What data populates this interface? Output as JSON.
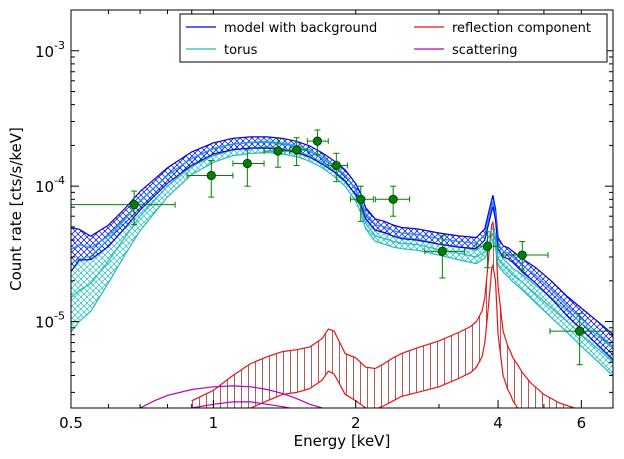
{
  "chart_data": {
    "type": "line",
    "xlabel": "Energy [keV]",
    "ylabel": "Count rate [cts/s/keV]",
    "xscale": "log",
    "yscale": "log",
    "xlim": [
      0.5,
      7.0
    ],
    "ylim": [
      2.3e-06,
      0.002
    ],
    "x_ticks": [
      {
        "value": 0.5,
        "label": "0.5"
      },
      {
        "value": 1,
        "label": "1"
      },
      {
        "value": 2,
        "label": "2"
      },
      {
        "value": 4,
        "label": "4"
      },
      {
        "value": 6,
        "label": "6"
      }
    ],
    "y_ticks": [
      {
        "value": 1e-05,
        "base": "10",
        "exp": "-5"
      },
      {
        "value": 0.0001,
        "base": "10",
        "exp": "-4"
      },
      {
        "value": 0.001,
        "base": "10",
        "exp": "-3"
      }
    ],
    "legend": {
      "position": "top-right",
      "columns": 2
    },
    "colors": {
      "model": "#0000dd",
      "model_inner": "#1e90ff",
      "torus": "#22bbbb",
      "reflection": "#ee1111",
      "reflection_hatch": "#993333",
      "scattering": "#bb00bb",
      "data": "#008000"
    },
    "series": [
      {
        "name": "model with background",
        "key": "model",
        "band": true,
        "x": [
          0.5,
          0.52,
          0.55,
          0.6,
          0.65,
          0.7,
          0.8,
          0.9,
          1.0,
          1.1,
          1.2,
          1.3,
          1.4,
          1.5,
          1.6,
          1.7,
          1.8,
          1.9,
          2.0,
          2.05,
          2.1,
          2.2,
          2.3,
          2.4,
          2.5,
          2.7,
          3.0,
          3.3,
          3.6,
          3.75,
          3.85,
          3.9,
          3.95,
          4.0,
          4.1,
          4.2,
          4.3,
          4.5,
          4.8,
          5.2,
          5.6,
          6.0,
          6.5,
          7.0
        ],
        "values": [
          3.4e-05,
          3.7e-05,
          3.5e-05,
          4.3e-05,
          5.8e-05,
          7.8e-05,
          0.00012,
          0.00016,
          0.00019,
          0.000205,
          0.00021,
          0.00021,
          0.000205,
          0.000195,
          0.00018,
          0.00016,
          0.00014,
          0.00012,
          9.5e-05,
          8e-05,
          6.3e-05,
          5.2e-05,
          5e-05,
          4.7e-05,
          4.5e-05,
          4.4e-05,
          4.1e-05,
          3.9e-05,
          3.8e-05,
          4.4e-05,
          6.5e-05,
          7.8e-05,
          6.2e-05,
          3.8e-05,
          3.3e-05,
          3.2e-05,
          3e-05,
          2.6e-05,
          2.2e-05,
          1.7e-05,
          1.3e-05,
          1.05e-05,
          8.2e-06,
          6.5e-06
        ],
        "band_spread": [
          1.45,
          1.3,
          1.22,
          1.2,
          1.18,
          1.17,
          1.14,
          1.12,
          1.1,
          1.1,
          1.1,
          1.1,
          1.1,
          1.1,
          1.1,
          1.1,
          1.1,
          1.1,
          1.1,
          1.1,
          1.1,
          1.1,
          1.1,
          1.1,
          1.1,
          1.1,
          1.1,
          1.1,
          1.1,
          1.1,
          1.1,
          1.1,
          1.1,
          1.1,
          1.1,
          1.1,
          1.1,
          1.12,
          1.14,
          1.16,
          1.18,
          1.2,
          1.22,
          1.24
        ]
      },
      {
        "name": "torus",
        "key": "torus",
        "band": true,
        "x": [
          0.5,
          0.52,
          0.55,
          0.6,
          0.65,
          0.7,
          0.8,
          0.9,
          1.0,
          1.1,
          1.2,
          1.3,
          1.4,
          1.5,
          1.6,
          1.7,
          1.8,
          1.9,
          2.0,
          2.05,
          2.1,
          2.2,
          2.3,
          2.4,
          2.5,
          2.7,
          3.0,
          3.3,
          3.6,
          3.75,
          3.85,
          3.9,
          3.95,
          4.0,
          4.1,
          4.2,
          4.3,
          4.5,
          4.8,
          5.2,
          5.6,
          6.0,
          6.5,
          7.0
        ],
        "values": [
          1.5e-05,
          1.7e-05,
          1.9e-05,
          2.8e-05,
          4.2e-05,
          6e-05,
          0.0001,
          0.00014,
          0.000168,
          0.000185,
          0.000192,
          0.000195,
          0.00019,
          0.000182,
          0.000168,
          0.00015,
          0.00013,
          0.00011,
          8.5e-05,
          7e-05,
          5.3e-05,
          4.3e-05,
          4.1e-05,
          3.9e-05,
          3.8e-05,
          3.7e-05,
          3.4e-05,
          3.2e-05,
          3e-05,
          3.3e-05,
          4e-05,
          4.4e-05,
          3.9e-05,
          2.9e-05,
          2.6e-05,
          2.4e-05,
          2.2e-05,
          1.95e-05,
          1.6e-05,
          1.25e-05,
          1e-05,
          8e-06,
          6.3e-06,
          5e-06
        ],
        "band_spread": [
          1.8,
          1.7,
          1.6,
          1.45,
          1.35,
          1.28,
          1.2,
          1.15,
          1.12,
          1.1,
          1.1,
          1.1,
          1.1,
          1.1,
          1.1,
          1.1,
          1.1,
          1.1,
          1.1,
          1.1,
          1.1,
          1.1,
          1.1,
          1.1,
          1.1,
          1.1,
          1.1,
          1.12,
          1.12,
          1.12,
          1.12,
          1.12,
          1.12,
          1.12,
          1.12,
          1.12,
          1.12,
          1.14,
          1.16,
          1.18,
          1.2,
          1.22,
          1.24,
          1.26
        ]
      },
      {
        "name": "reflection component",
        "key": "reflection",
        "band": true,
        "x": [
          0.9,
          1.0,
          1.1,
          1.2,
          1.3,
          1.4,
          1.5,
          1.6,
          1.7,
          1.75,
          1.8,
          1.9,
          2.0,
          2.1,
          2.2,
          2.3,
          2.4,
          2.5,
          2.7,
          3.0,
          3.3,
          3.5,
          3.6,
          3.7,
          3.75,
          3.8,
          3.85,
          3.88,
          3.9,
          3.95,
          4.0,
          4.1,
          4.2,
          4.25,
          4.3,
          4.4,
          4.5,
          4.7,
          5.0,
          5.4,
          5.8,
          6.2
        ],
        "values": [
          2.6e-06,
          3.1e-06,
          4e-06,
          4.9e-06,
          5.5e-06,
          6e-06,
          6.2e-06,
          6.5e-06,
          7.5e-06,
          8.8e-06,
          8.5e-06,
          5.8e-06,
          5.4e-06,
          4.6e-06,
          4.5e-06,
          4.9e-06,
          5.4e-06,
          5.8e-06,
          6.4e-06,
          7.2e-06,
          8.3e-06,
          9.2e-06,
          1e-05,
          1.2e-05,
          1.5e-05,
          2.4e-05,
          4e-05,
          5.2e-05,
          5.4e-05,
          4.2e-05,
          1.8e-05,
          8.5e-06,
          6.5e-06,
          6e-06,
          5.4e-06,
          4.8e-06,
          4.2e-06,
          3.5e-06,
          2.9e-06,
          2.5e-06,
          2.3e-06,
          2.25e-06
        ],
        "band_lower": [
          2e-06,
          2e-06,
          2.1e-06,
          2.3e-06,
          2.6e-06,
          2.9e-06,
          3e-06,
          3.2e-06,
          3.7e-06,
          4.3e-06,
          4.1e-06,
          2.9e-06,
          2.6e-06,
          2.3e-06,
          2.25e-06,
          2.4e-06,
          2.6e-06,
          2.8e-06,
          3e-06,
          3.3e-06,
          3.8e-06,
          4.2e-06,
          4.6e-06,
          5.5e-06,
          7e-06,
          1.1e-05,
          1.8e-05,
          2.5e-05,
          2.6e-05,
          2e-05,
          8e-06,
          4e-06,
          3.1e-06,
          2.9e-06,
          2.6e-06,
          2.3e-06,
          2.1e-06,
          2e-06,
          2e-06,
          2e-06,
          2e-06,
          2e-06
        ]
      },
      {
        "name": "scattering",
        "key": "scattering",
        "band": false,
        "curves": [
          {
            "x": [
              0.7,
              0.75,
              0.8,
              0.9,
              1.0,
              1.1,
              1.2,
              1.3,
              1.4,
              1.5,
              1.6,
              1.7
            ],
            "values": [
              2.3e-06,
              2.6e-06,
              2.85e-06,
              3.15e-06,
              3.3e-06,
              3.35e-06,
              3.3e-06,
              3.15e-06,
              2.95e-06,
              2.7e-06,
              2.45e-06,
              2.3e-06
            ]
          },
          {
            "x": [
              0.9,
              1.0,
              1.1,
              1.2,
              1.3,
              1.4,
              1.45
            ],
            "values": [
              2.3e-06,
              2.45e-06,
              2.55e-06,
              2.55e-06,
              2.45e-06,
              2.35e-06,
              2.3e-06
            ]
          }
        ]
      }
    ],
    "data_points": [
      {
        "x": 0.68,
        "xerr": [
          0.5,
          0.83
        ],
        "y": 7.3e-05,
        "yerr": [
          5.2e-05,
          9.2e-05
        ]
      },
      {
        "x": 0.99,
        "xerr": [
          0.88,
          1.1
        ],
        "y": 0.00012,
        "yerr": [
          8.3e-05,
          0.000155
        ]
      },
      {
        "x": 1.18,
        "xerr": [
          1.1,
          1.28
        ],
        "y": 0.000147,
        "yerr": [
          0.0001,
          0.000185
        ]
      },
      {
        "x": 1.37,
        "xerr": [
          1.28,
          1.45
        ],
        "y": 0.000182,
        "yerr": [
          0.000138,
          0.000225
        ]
      },
      {
        "x": 1.5,
        "xerr": [
          1.45,
          1.58
        ],
        "y": 0.000185,
        "yerr": [
          0.000142,
          0.000228
        ]
      },
      {
        "x": 1.66,
        "xerr": [
          1.58,
          1.75
        ],
        "y": 0.000215,
        "yerr": [
          0.00017,
          0.00026
        ]
      },
      {
        "x": 1.82,
        "xerr": [
          1.75,
          1.92
        ],
        "y": 0.000142,
        "yerr": [
          0.000108,
          0.000175
        ]
      },
      {
        "x": 2.05,
        "xerr": [
          1.95,
          2.18
        ],
        "y": 8e-05,
        "yerr": [
          5.5e-05,
          0.0001
        ]
      },
      {
        "x": 2.4,
        "xerr": [
          2.2,
          2.6
        ],
        "y": 8e-05,
        "yerr": [
          6e-05,
          0.0001
        ]
      },
      {
        "x": 3.05,
        "xerr": [
          2.8,
          3.4
        ],
        "y": 3.3e-05,
        "yerr": [
          2.1e-05,
          4.3e-05
        ]
      },
      {
        "x": 3.8,
        "xerr": [
          3.6,
          4.0
        ],
        "y": 3.6e-05,
        "yerr": [
          2.5e-05,
          4.6e-05
        ]
      },
      {
        "x": 4.5,
        "xerr": [
          4.1,
          5.1
        ],
        "y": 3.1e-05,
        "yerr": [
          2.4e-05,
          3.9e-05
        ]
      },
      {
        "x": 5.95,
        "xerr": [
          5.15,
          7.0
        ],
        "y": 8.5e-06,
        "yerr": [
          4.8e-06,
          1.15e-05
        ]
      }
    ]
  }
}
